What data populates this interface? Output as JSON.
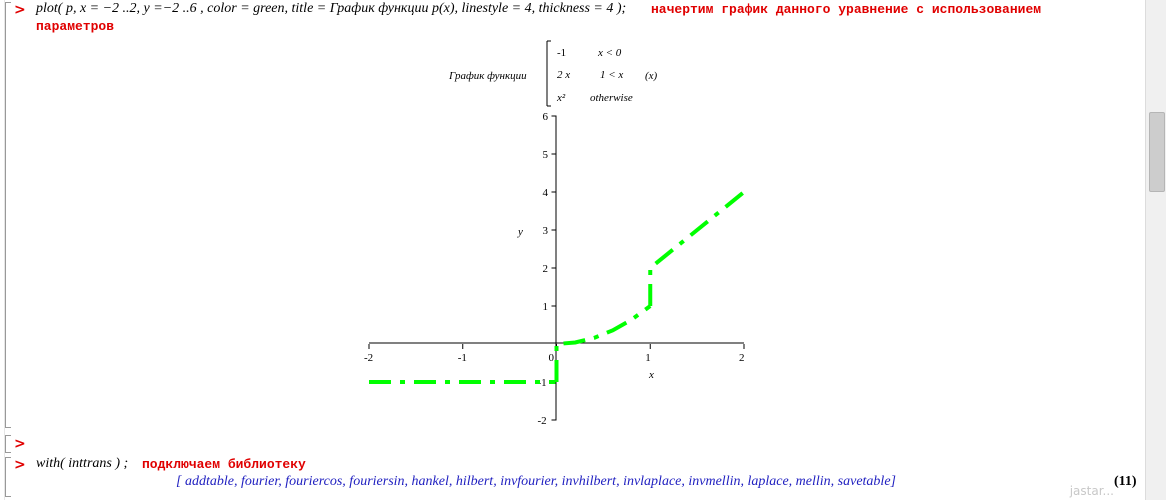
{
  "worksheet": {
    "prompt_symbol": ">",
    "cmd1": {
      "input": "plot( p, x = −2 ..2, y =−2 ..6 , color = green, title = График функции p(x), linestyle = 4, thickness = 4 );",
      "comment_line1": "начертим график данного уравнение с использованием",
      "comment_line2": "параметров"
    },
    "empty_prompt": ">",
    "cmd2": {
      "input": "with( inttrans ) ;",
      "comment": "подключаем библиотеку",
      "output": "[ addtable, fourier, fouriercos, fouriersin, hankel, hilbert, invfourier, invhilbert, invlaplace, invmellin, laplace, mellin, savetable]",
      "eq_label": "(11)"
    },
    "watermark": "jastar..."
  },
  "chart_data": {
    "type": "line",
    "title_prefix": "График функции",
    "title_cases": [
      {
        "expr": "-1",
        "cond": "x < 0"
      },
      {
        "expr": "2 x",
        "cond": "1 < x"
      },
      {
        "expr": "x²",
        "cond": "otherwise"
      }
    ],
    "title_suffix": "(x)",
    "xlabel": "x",
    "ylabel": "y",
    "xlim": [
      -2,
      2
    ],
    "ylim": [
      -2,
      6
    ],
    "x_ticks": [
      "-2",
      "-1",
      "0",
      "1",
      "2"
    ],
    "y_ticks": [
      "-2",
      "-1",
      "1",
      "2",
      "3",
      "4",
      "5",
      "6"
    ],
    "color": "#00ff00",
    "linestyle": "dash-dot",
    "series": [
      {
        "x": [
          -2,
          -0.01
        ],
        "y": [
          -1,
          -1
        ]
      },
      {
        "x": [
          0,
          0,
          0.2,
          0.4,
          0.6,
          0.8,
          1.0
        ],
        "y": [
          -1,
          0,
          0.04,
          0.16,
          0.36,
          0.64,
          1.0
        ]
      },
      {
        "x": [
          1,
          1,
          1.5,
          2.0
        ],
        "y": [
          1,
          2,
          3,
          4
        ]
      }
    ]
  }
}
